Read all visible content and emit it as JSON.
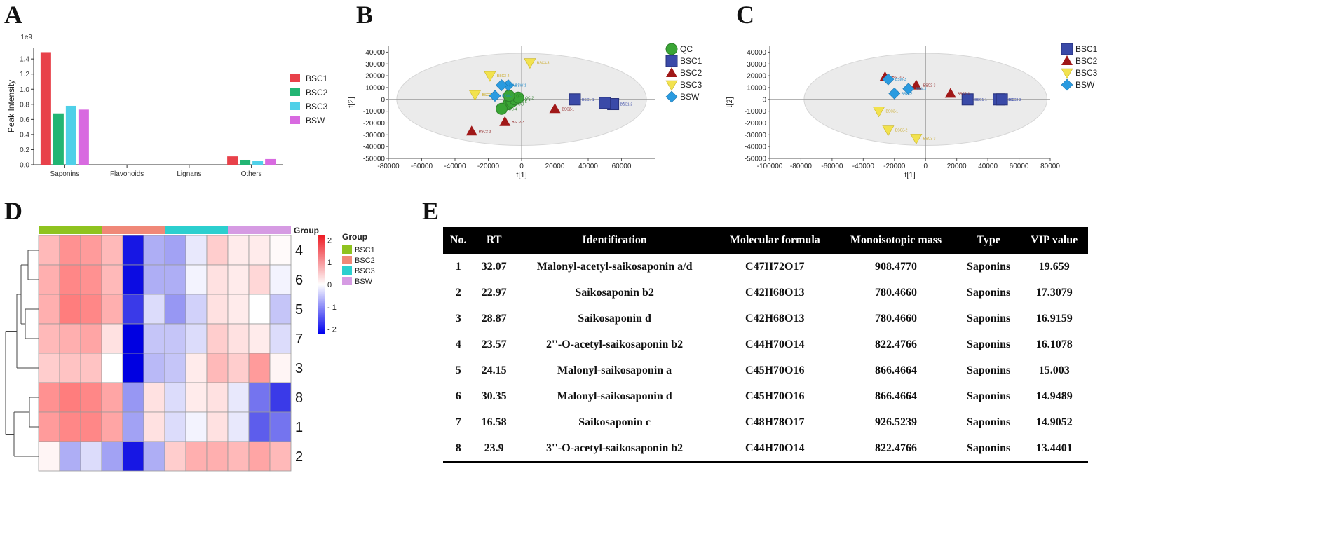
{
  "panel_labels": {
    "a": "A",
    "b": "B",
    "c": "C",
    "d": "D",
    "e": "E"
  },
  "chart_data": [
    {
      "panel": "A",
      "type": "bar",
      "title": "",
      "xlabel": "",
      "ylabel": "Peak Intensity",
      "scale_note": "1e9",
      "categories": [
        "Saponins",
        "Flavonoids",
        "Lignans",
        "Others"
      ],
      "series": [
        {
          "name": "BSC1",
          "color": "#e8414a",
          "values": [
            1.49,
            0.0,
            0.0,
            0.11
          ]
        },
        {
          "name": "BSC2",
          "color": "#22b573",
          "values": [
            0.68,
            0.0,
            0.0,
            0.065
          ]
        },
        {
          "name": "BSC3",
          "color": "#4fd0e8",
          "values": [
            0.78,
            0.0,
            0.0,
            0.055
          ]
        },
        {
          "name": "BSW",
          "color": "#d86ae0",
          "values": [
            0.73,
            0.0,
            0.0,
            0.075
          ]
        }
      ],
      "ylim": [
        0,
        1.55
      ],
      "yticks": [
        0.0,
        0.2,
        0.4,
        0.6,
        0.8,
        1.0,
        1.2,
        1.4
      ],
      "ytick_labels": [
        "0.0",
        "0.2",
        "0.4",
        "0.6",
        "0.8",
        "1.0",
        "1.2",
        "1.4"
      ],
      "legend": "right"
    },
    {
      "panel": "B",
      "type": "scatter",
      "xlabel": "t[1]",
      "ylabel": "t[2]",
      "xlim": [
        -80000,
        80000
      ],
      "ylim": [
        -50000,
        45000
      ],
      "xticks": [
        -80000,
        -60000,
        -40000,
        -20000,
        0,
        20000,
        40000,
        60000
      ],
      "xtick_labels": [
        "-80000",
        "-60000",
        "-40000",
        "-20000",
        "0",
        "20000",
        "40000",
        "60000"
      ],
      "yticks": [
        40000,
        30000,
        20000,
        10000,
        0,
        -10000,
        -20000,
        -30000,
        -40000,
        -50000
      ],
      "ytick_labels": [
        "40000",
        "30000",
        "20000",
        "10000",
        "0",
        "-10000",
        "-20000",
        "-30000",
        "-40000",
        "-50000"
      ],
      "ellipse": {
        "rx": 75000,
        "ry": 39000
      },
      "legend": "top-right",
      "series": [
        {
          "name": "QC",
          "marker": "circle",
          "color": "#3aa535",
          "points": [
            {
              "x": -8000,
              "y": -4000,
              "label": "QC-3"
            },
            {
              "x": -6000,
              "y": -2000,
              "label": "QC-5"
            },
            {
              "x": -4000,
              "y": 0,
              "label": "QC-1"
            },
            {
              "x": -2000,
              "y": 1500,
              "label": "QC-2"
            },
            {
              "x": -12000,
              "y": -8000,
              "label": "QC-4"
            },
            {
              "x": -7500,
              "y": 3000,
              "label": "QC"
            }
          ]
        },
        {
          "name": "BSC1",
          "marker": "square",
          "color": "#3a4aa8",
          "points": [
            {
              "x": 32000,
              "y": 0,
              "label": "BSC1-1"
            },
            {
              "x": 55000,
              "y": -4000,
              "label": "BSC1-2"
            },
            {
              "x": 50000,
              "y": -3000,
              "label": "BSC1-3"
            }
          ]
        },
        {
          "name": "BSC2",
          "marker": "triangle-up",
          "color": "#a01818",
          "points": [
            {
              "x": 20000,
              "y": -8000,
              "label": "BSC2-1"
            },
            {
              "x": -30000,
              "y": -27000,
              "label": "BSC2-2"
            },
            {
              "x": -10000,
              "y": -19000,
              "label": "BSC2-3"
            }
          ]
        },
        {
          "name": "BSC3",
          "marker": "triangle-down",
          "color": "#f2e24e",
          "points": [
            {
              "x": -28000,
              "y": 4000,
              "label": "BSC3-1"
            },
            {
              "x": -19000,
              "y": 20000,
              "label": "BSC3-2"
            },
            {
              "x": 5000,
              "y": 31000,
              "label": "BSC3-3"
            }
          ]
        },
        {
          "name": "BSW",
          "marker": "diamond",
          "color": "#2a9be0",
          "points": [
            {
              "x": -8000,
              "y": 12000,
              "label": "BSW-1"
            },
            {
              "x": -16000,
              "y": 3000,
              "label": "BSW-2"
            },
            {
              "x": -12000,
              "y": 12000,
              "label": "BSW-3"
            }
          ]
        }
      ]
    },
    {
      "panel": "C",
      "type": "scatter",
      "xlabel": "t[1]",
      "ylabel": "t[2]",
      "xlim": [
        -100000,
        80000
      ],
      "ylim": [
        -50000,
        45000
      ],
      "xticks": [
        -100000,
        -80000,
        -60000,
        -40000,
        -20000,
        0,
        20000,
        40000,
        60000,
        80000
      ],
      "xtick_labels": [
        "-100000",
        "-80000",
        "-60000",
        "-40000",
        "-20000",
        "0",
        "20000",
        "40000",
        "60000",
        "80000"
      ],
      "yticks": [
        40000,
        30000,
        20000,
        10000,
        0,
        -10000,
        -20000,
        -30000,
        -40000,
        -50000
      ],
      "ytick_labels": [
        "40000",
        "30000",
        "20000",
        "10000",
        "0",
        "-10000",
        "-20000",
        "-30000",
        "-40000",
        "-50000"
      ],
      "ellipse": {
        "rx": 78000,
        "ry": 39000
      },
      "legend": "top-right",
      "series": [
        {
          "name": "BSC1",
          "marker": "square",
          "color": "#3a4aa8",
          "points": [
            {
              "x": 27000,
              "y": 0,
              "label": "BSC1-1"
            },
            {
              "x": 47000,
              "y": 0,
              "label": "BSC1-2"
            },
            {
              "x": 49000,
              "y": 0,
              "label": "BSC1-3"
            }
          ]
        },
        {
          "name": "BSC2",
          "marker": "triangle-up",
          "color": "#a01818",
          "points": [
            {
              "x": 16000,
              "y": 5000,
              "label": "BSC2-1"
            },
            {
              "x": -26000,
              "y": 19000,
              "label": "BSC2-2"
            },
            {
              "x": -6000,
              "y": 12000,
              "label": "BSC2-3"
            }
          ]
        },
        {
          "name": "BSC3",
          "marker": "triangle-down",
          "color": "#f2e24e",
          "points": [
            {
              "x": -30000,
              "y": -10000,
              "label": "BSC3-1"
            },
            {
              "x": -24000,
              "y": -26000,
              "label": "BSC3-2"
            },
            {
              "x": -6000,
              "y": -33000,
              "label": "BSC3-3"
            }
          ]
        },
        {
          "name": "BSW",
          "marker": "diamond",
          "color": "#2a9be0",
          "points": [
            {
              "x": -11000,
              "y": 9000,
              "label": "BSW-1"
            },
            {
              "x": -20000,
              "y": 5000,
              "label": "BSW-2"
            },
            {
              "x": -24000,
              "y": 17000,
              "label": "BSW-3"
            }
          ]
        }
      ]
    },
    {
      "panel": "D",
      "type": "heatmap",
      "row_labels": [
        "4",
        "6",
        "5",
        "7",
        "3",
        "8",
        "1",
        "2"
      ],
      "column_groups": [
        "BSC1",
        "BSC1",
        "BSC1",
        "BSC2",
        "BSC2",
        "BSC2",
        "BSC3",
        "BSC3",
        "BSC3",
        "BSW",
        "BSW",
        "BSW"
      ],
      "values": [
        [
          0.7,
          1.1,
          1.0,
          0.7,
          -2.0,
          -0.7,
          -0.8,
          -0.2,
          0.5,
          0.2,
          0.2,
          0.05
        ],
        [
          0.8,
          1.2,
          1.1,
          0.7,
          -2.1,
          -0.7,
          -0.7,
          -0.1,
          0.3,
          0.2,
          0.4,
          -0.1
        ],
        [
          0.8,
          1.3,
          1.2,
          0.8,
          -1.7,
          -0.3,
          -0.9,
          -0.4,
          0.3,
          0.2,
          0.0,
          -0.5
        ],
        [
          0.7,
          0.8,
          0.9,
          0.3,
          -2.2,
          -0.5,
          -0.5,
          -0.3,
          0.5,
          0.3,
          0.2,
          -0.3
        ],
        [
          0.5,
          0.6,
          0.6,
          0.0,
          -2.2,
          -0.6,
          -0.5,
          0.2,
          0.7,
          0.5,
          1.0,
          0.1
        ],
        [
          1.1,
          1.3,
          1.2,
          0.9,
          -0.9,
          0.3,
          -0.3,
          0.2,
          0.3,
          -0.2,
          -1.2,
          -1.7
        ],
        [
          1.0,
          1.2,
          1.2,
          0.9,
          -0.8,
          0.3,
          -0.3,
          -0.1,
          0.3,
          -0.2,
          -1.4,
          -1.2
        ],
        [
          0.1,
          -0.7,
          -0.3,
          -0.8,
          -2.0,
          -0.7,
          0.5,
          0.8,
          0.8,
          0.7,
          0.9,
          0.7
        ]
      ],
      "colorbar_ticks": [
        2,
        1,
        0,
        -1,
        -2
      ],
      "colorbar_labels": [
        "2",
        "1",
        "0",
        "- 1",
        "- 2"
      ],
      "group_label": "Group",
      "group_legend_title": "Group",
      "group_legend": [
        {
          "name": "BSC1",
          "color": "#8fc31f"
        },
        {
          "name": "BSC2",
          "color": "#f08878"
        },
        {
          "name": "BSC3",
          "color": "#2ccfcf"
        },
        {
          "name": "BSW",
          "color": "#d69be3"
        }
      ]
    }
  ],
  "table": {
    "headers": [
      "No.",
      "RT",
      "Identification",
      "Molecular formula",
      "Monoisotopic mass",
      "Type",
      "VIP value"
    ],
    "rows": [
      [
        "1",
        "32.07",
        "Malonyl-acetyl-saikosaponin a/d",
        "C47H72O17",
        "908.4770",
        "Saponins",
        "19.659"
      ],
      [
        "2",
        "22.97",
        "Saikosaponin b2",
        "C42H68O13",
        "780.4660",
        "Saponins",
        "17.3079"
      ],
      [
        "3",
        "28.87",
        "Saikosaponin d",
        "C42H68O13",
        "780.4660",
        "Saponins",
        "16.9159"
      ],
      [
        "4",
        "23.57",
        "2''-O-acetyl-saikosaponin b2",
        "C44H70O14",
        "822.4766",
        "Saponins",
        "16.1078"
      ],
      [
        "5",
        "24.15",
        "Malonyl-saikosaponin a",
        "C45H70O16",
        "866.4664",
        "Saponins",
        "15.003"
      ],
      [
        "6",
        "30.35",
        "Malonyl-saikosaponin d",
        "C45H70O16",
        "866.4664",
        "Saponins",
        "14.9489"
      ],
      [
        "7",
        "16.58",
        "Saikosaponin c",
        "C48H78O17",
        "926.5239",
        "Saponins",
        "14.9052"
      ],
      [
        "8",
        "23.9",
        "3''-O-acetyl-saikosaponin b2",
        "C44H70O14",
        "822.4766",
        "Saponins",
        "13.4401"
      ]
    ]
  }
}
